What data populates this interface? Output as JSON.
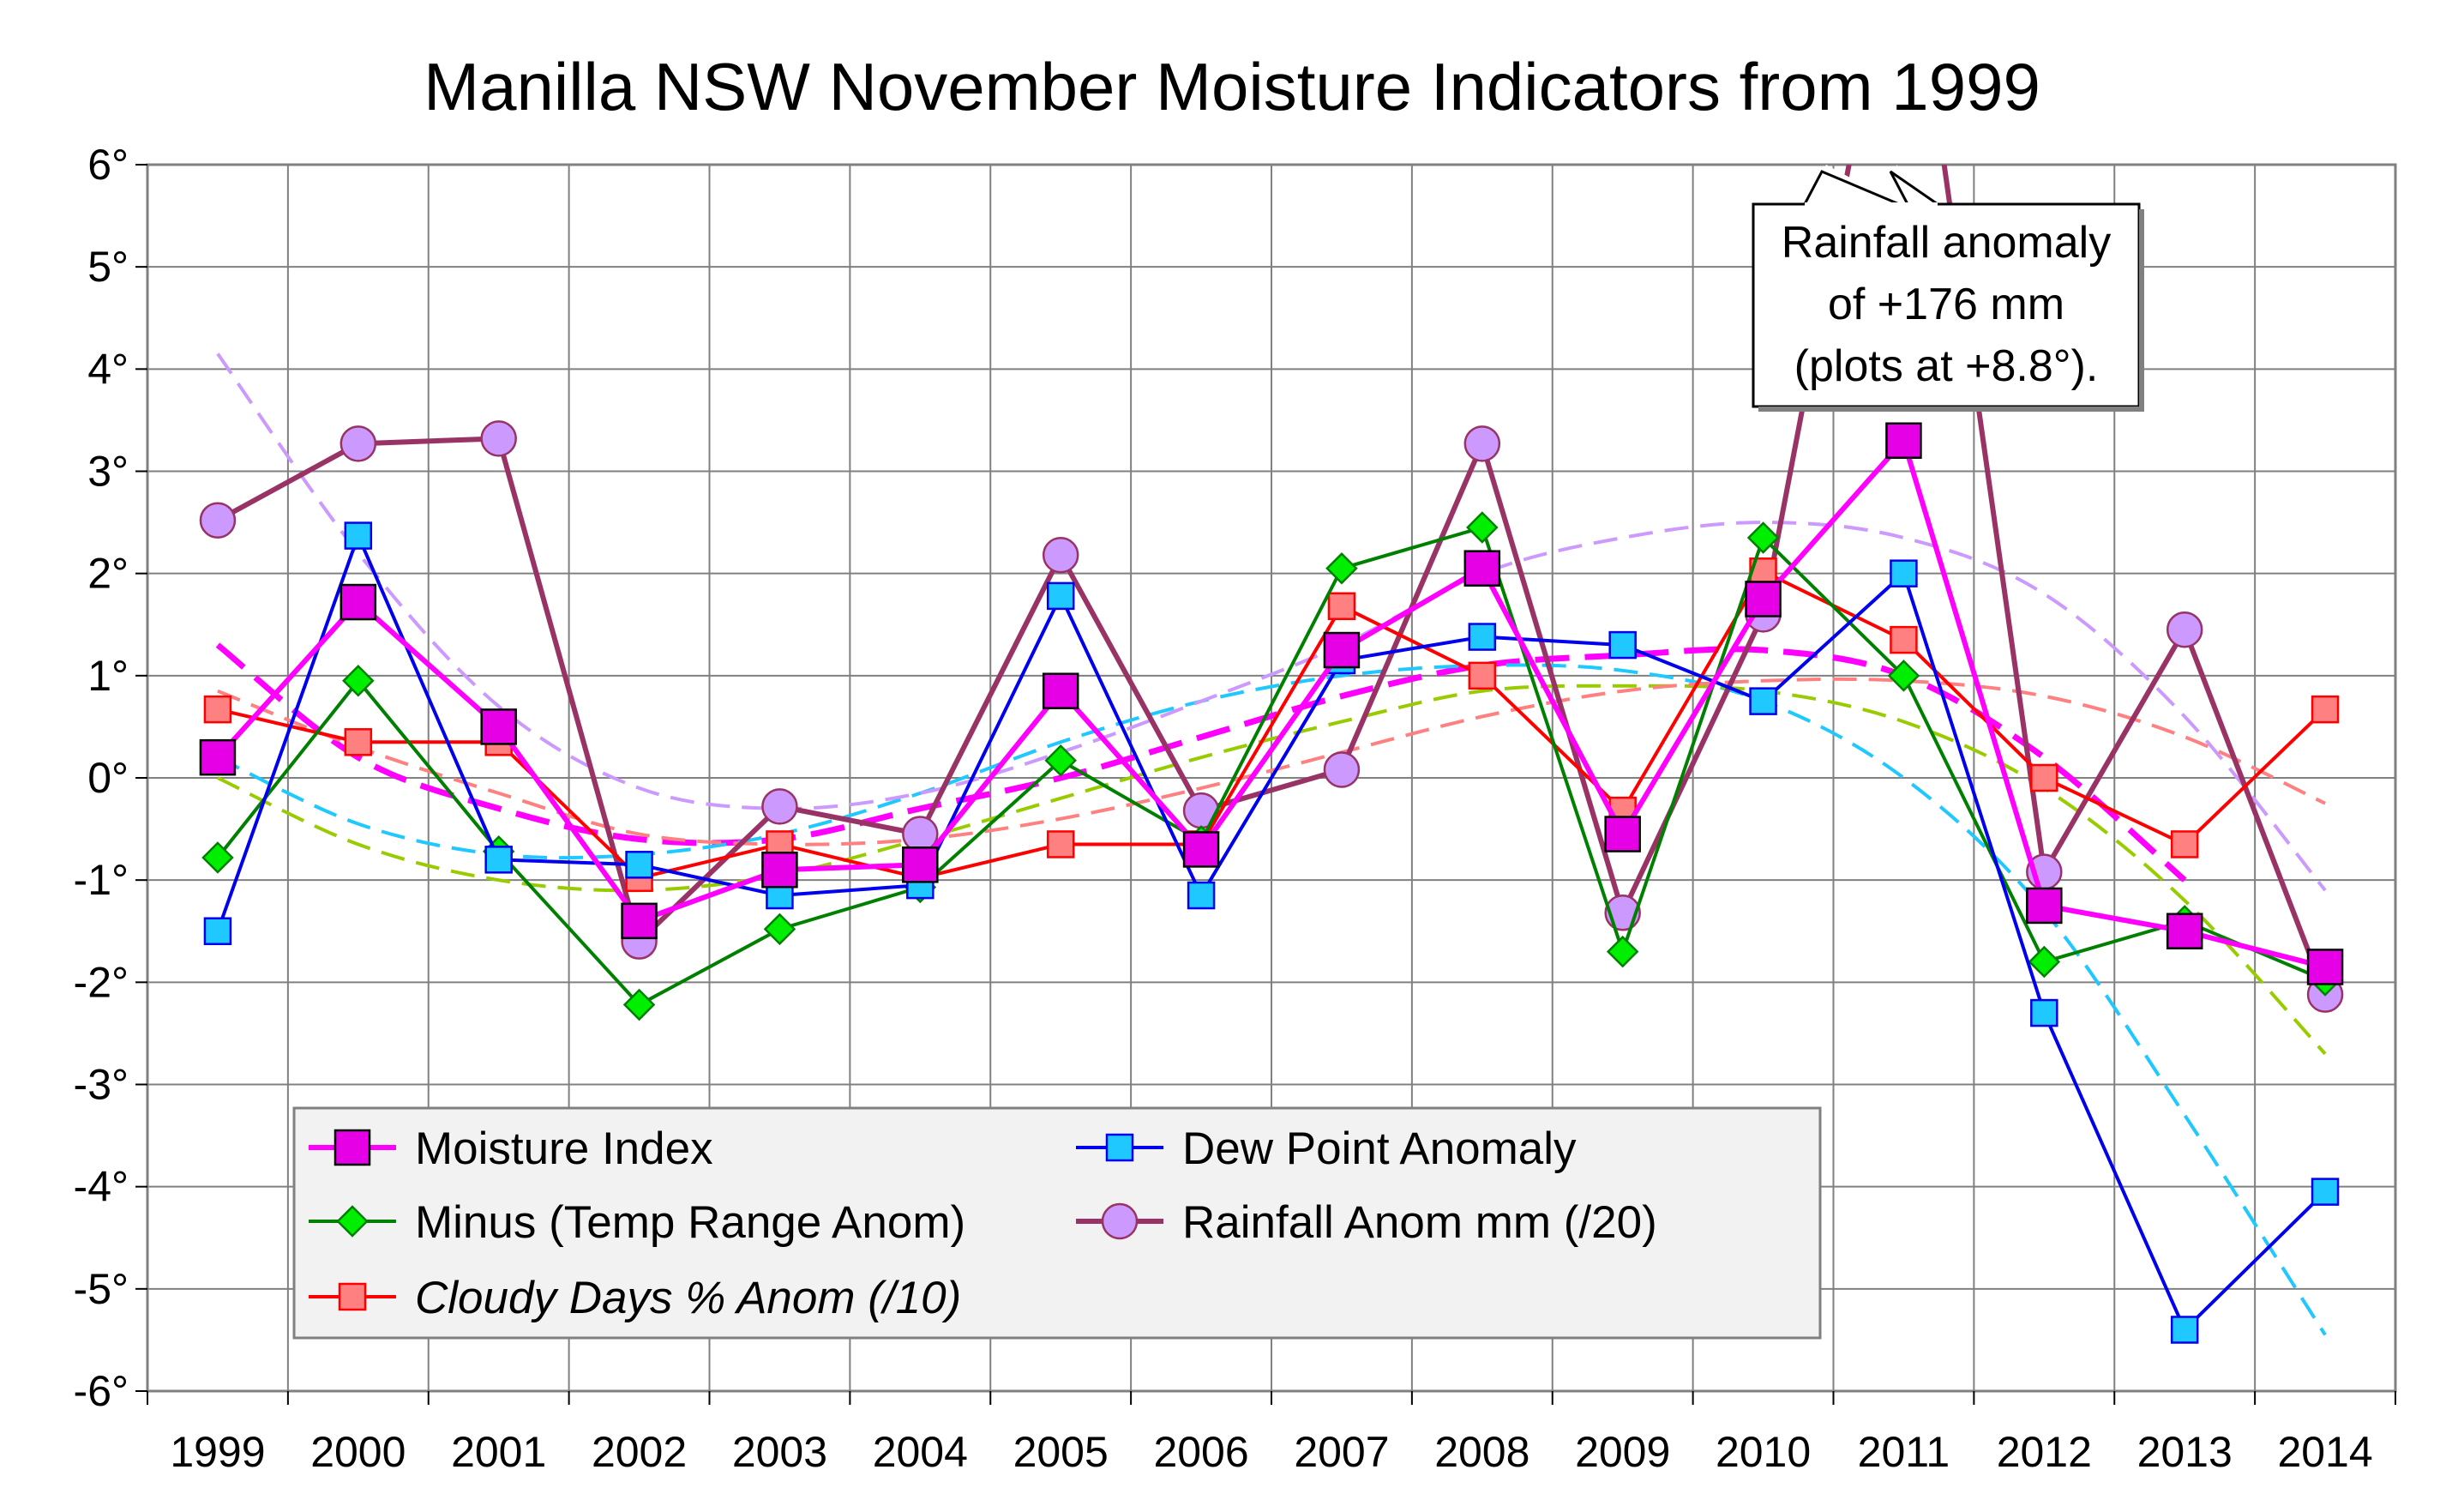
{
  "chart_data": {
    "type": "line",
    "title": "Manilla NSW November Moisture Indicators from 1999",
    "xlabel": "",
    "ylabel": "",
    "ylim": [
      -6,
      6
    ],
    "x": [
      "1999",
      "2000",
      "2001",
      "2002",
      "2003",
      "2004",
      "2005",
      "2006",
      "2007",
      "2008",
      "2009",
      "2010",
      "2011",
      "2012",
      "2013",
      "2014"
    ],
    "yticks": [
      "6°",
      "5°",
      "4°",
      "3°",
      "2°",
      "1°",
      "0°",
      "-1°",
      "-2°",
      "-3°",
      "-4°",
      "-5°",
      "-6°"
    ],
    "grid": true,
    "legend_placement": "bottom-left",
    "series": [
      {
        "name": "Moisture Index",
        "color": "#ff00ff",
        "marker_fill": "#e600e6",
        "marker": "square-large",
        "values": [
          0.2,
          1.72,
          0.5,
          -1.4,
          -0.9,
          -0.85,
          0.85,
          -0.7,
          1.25,
          2.05,
          -0.55,
          1.75,
          3.3,
          -1.25,
          -1.5,
          -1.85
        ]
      },
      {
        "name": "Dew Point Anomaly",
        "color": "#0000ee",
        "marker_fill": "#1fc8ff",
        "marker": "square",
        "values": [
          -1.5,
          2.37,
          -0.8,
          -0.85,
          -1.15,
          -1.05,
          1.78,
          -1.15,
          1.15,
          1.38,
          1.3,
          0.75,
          2.0,
          -2.3,
          -5.4,
          -4.05
        ]
      },
      {
        "name": "Minus (Temp Range Anom)",
        "color": "#008000",
        "marker_fill": "#00ee00",
        "marker": "diamond",
        "values": [
          -0.78,
          0.95,
          -0.72,
          -2.22,
          -1.48,
          -1.07,
          0.17,
          -0.62,
          2.05,
          2.45,
          -1.7,
          2.35,
          1.0,
          -1.8,
          -1.4,
          -1.98
        ]
      },
      {
        "name": "Rainfall Anom mm (/20)",
        "color": "#993366",
        "marker_fill": "#cc99ff",
        "marker": "circle",
        "values": [
          2.52,
          3.27,
          3.32,
          -1.6,
          -0.28,
          -0.55,
          2.18,
          -0.32,
          0.08,
          3.27,
          -1.32,
          1.6,
          8.8,
          -0.92,
          1.45,
          -2.12
        ]
      },
      {
        "name": "Cloudy Days % Anom (/10)",
        "color": "#ff0000",
        "marker_fill": "#ff8080",
        "marker": "square",
        "italic": true,
        "values": [
          0.67,
          0.35,
          0.35,
          -0.98,
          -0.65,
          -0.98,
          -0.65,
          -0.65,
          1.68,
          1.0,
          -0.32,
          2.02,
          1.35,
          0.0,
          -0.65,
          0.67
        ]
      }
    ],
    "trend_lines": [
      {
        "series": "Moisture Index",
        "color": "#ff00ff",
        "dash": "long",
        "values": [
          1.3,
          0.2,
          -0.3,
          -0.6,
          -0.6,
          -0.3,
          0.0,
          0.4,
          0.8,
          1.1,
          1.2,
          1.25,
          1.0,
          0.2,
          -1.0,
          null
        ]
      },
      {
        "series": "Dew Point Anomaly",
        "color": "#1fc8ff",
        "dash": "medium",
        "values": [
          0.2,
          -0.45,
          -0.75,
          -0.75,
          -0.55,
          -0.15,
          0.35,
          0.75,
          1.0,
          1.1,
          1.05,
          0.75,
          0.0,
          -1.3,
          -3.3,
          -5.45
        ]
      },
      {
        "series": "Minus (Temp Range Anom)",
        "color": "#99cc00",
        "dash": "medium",
        "values": [
          0.0,
          -0.65,
          -1.0,
          -1.1,
          -0.95,
          -0.6,
          -0.2,
          0.2,
          0.55,
          0.85,
          0.9,
          0.85,
          0.55,
          -0.1,
          -1.2,
          -2.7
        ]
      },
      {
        "series": "Rainfall Anom mm (/20)",
        "color": "#cc99ff",
        "dash": "medium",
        "values": [
          4.15,
          2.2,
          0.7,
          -0.1,
          -0.3,
          -0.15,
          0.25,
          0.75,
          1.3,
          2.0,
          2.35,
          2.5,
          2.35,
          1.8,
          0.6,
          -1.1
        ]
      },
      {
        "series": "Cloudy Days % Anom (/10)",
        "color": "#ff8080",
        "dash": "medium",
        "values": [
          0.85,
          0.3,
          -0.15,
          -0.55,
          -0.65,
          -0.6,
          -0.4,
          -0.1,
          0.25,
          0.6,
          0.85,
          0.95,
          0.95,
          0.8,
          0.4,
          -0.25
        ]
      }
    ],
    "annotation": {
      "lines": [
        "Rainfall anomaly",
        "of +176 mm",
        "(plots at +8.8°)."
      ],
      "target": {
        "series": "Rainfall Anom mm (/20)",
        "x": "2011"
      }
    }
  }
}
